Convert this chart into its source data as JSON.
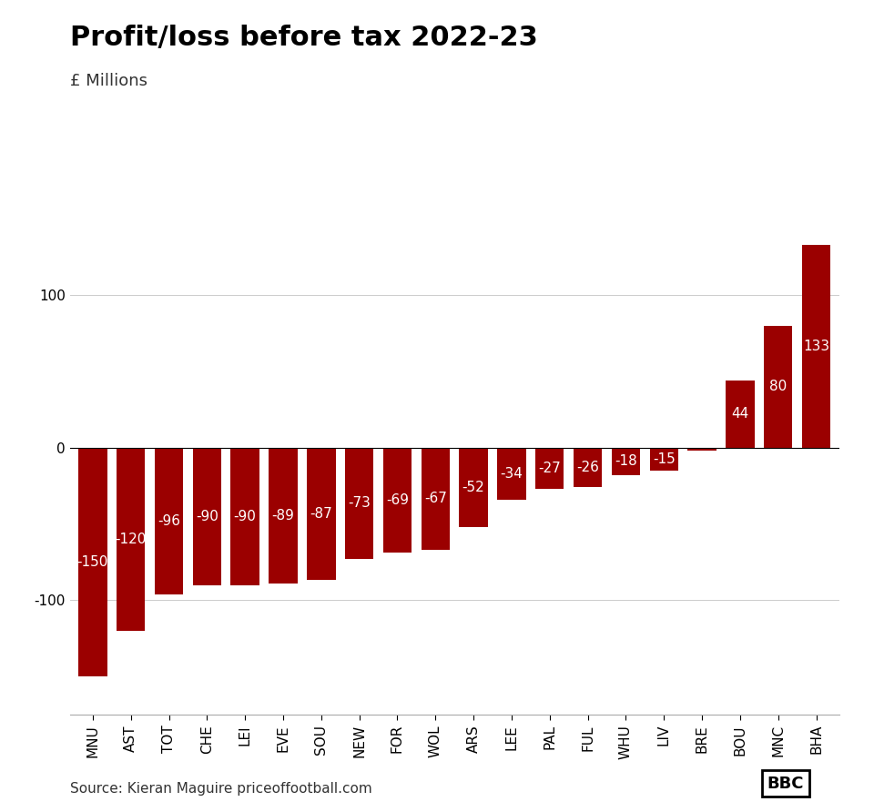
{
  "title": "Profit/loss before tax 2022-23",
  "subtitle": "£ Millions",
  "source": "Source: Kieran Maguire priceoffootball.com",
  "categories": [
    "MNU",
    "AST",
    "TOT",
    "CHE",
    "LEI",
    "EVE",
    "SOU",
    "NEW",
    "FOR",
    "WOL",
    "ARS",
    "LEE",
    "PAL",
    "FUL",
    "WHU",
    "LIV",
    "BRE",
    "BOU",
    "MNC",
    "BHA"
  ],
  "values": [
    -150,
    -120,
    -96,
    -90,
    -90,
    -89,
    -87,
    -73,
    -69,
    -67,
    -52,
    -34,
    -27,
    -26,
    -18,
    -15,
    -2,
    44,
    80,
    133
  ],
  "bar_color": "#9b0000",
  "yticks": [
    -100,
    0,
    100
  ],
  "ylim": [
    -175,
    155
  ],
  "background_color": "#ffffff",
  "title_fontsize": 22,
  "subtitle_fontsize": 13,
  "label_fontsize": 11,
  "tick_fontsize": 11,
  "source_fontsize": 11
}
